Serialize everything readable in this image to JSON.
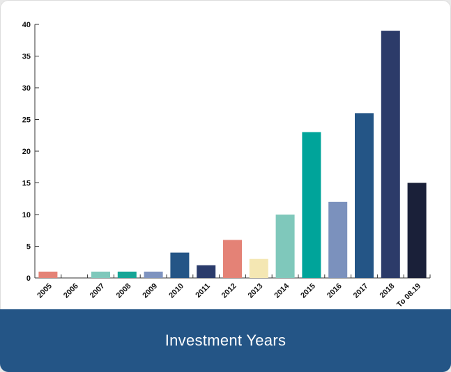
{
  "chart_data": {
    "type": "bar",
    "title": "Investment Years",
    "xlabel": "",
    "ylabel": "",
    "ylim": [
      0,
      40
    ],
    "yticks": [
      0,
      5,
      10,
      15,
      20,
      25,
      30,
      35,
      40
    ],
    "grid": false,
    "categories": [
      "2005",
      "2006",
      "2007",
      "2008",
      "2009",
      "2010",
      "2011",
      "2012",
      "2013",
      "2014",
      "2015",
      "2016",
      "2017",
      "2018",
      "To 08.19"
    ],
    "values": [
      1,
      0,
      1,
      1,
      1,
      4,
      2,
      6,
      3,
      10,
      23,
      12,
      26,
      39,
      15
    ],
    "colors": [
      "#e48276",
      "#e48276",
      "#7fc8bb",
      "#16a596",
      "#7e93bf",
      "#245586",
      "#2a3b6b",
      "#e48276",
      "#f4e7b3",
      "#7fc8bb",
      "#00a49a",
      "#7b91bd",
      "#245586",
      "#2c3b69",
      "#1a2039"
    ]
  }
}
